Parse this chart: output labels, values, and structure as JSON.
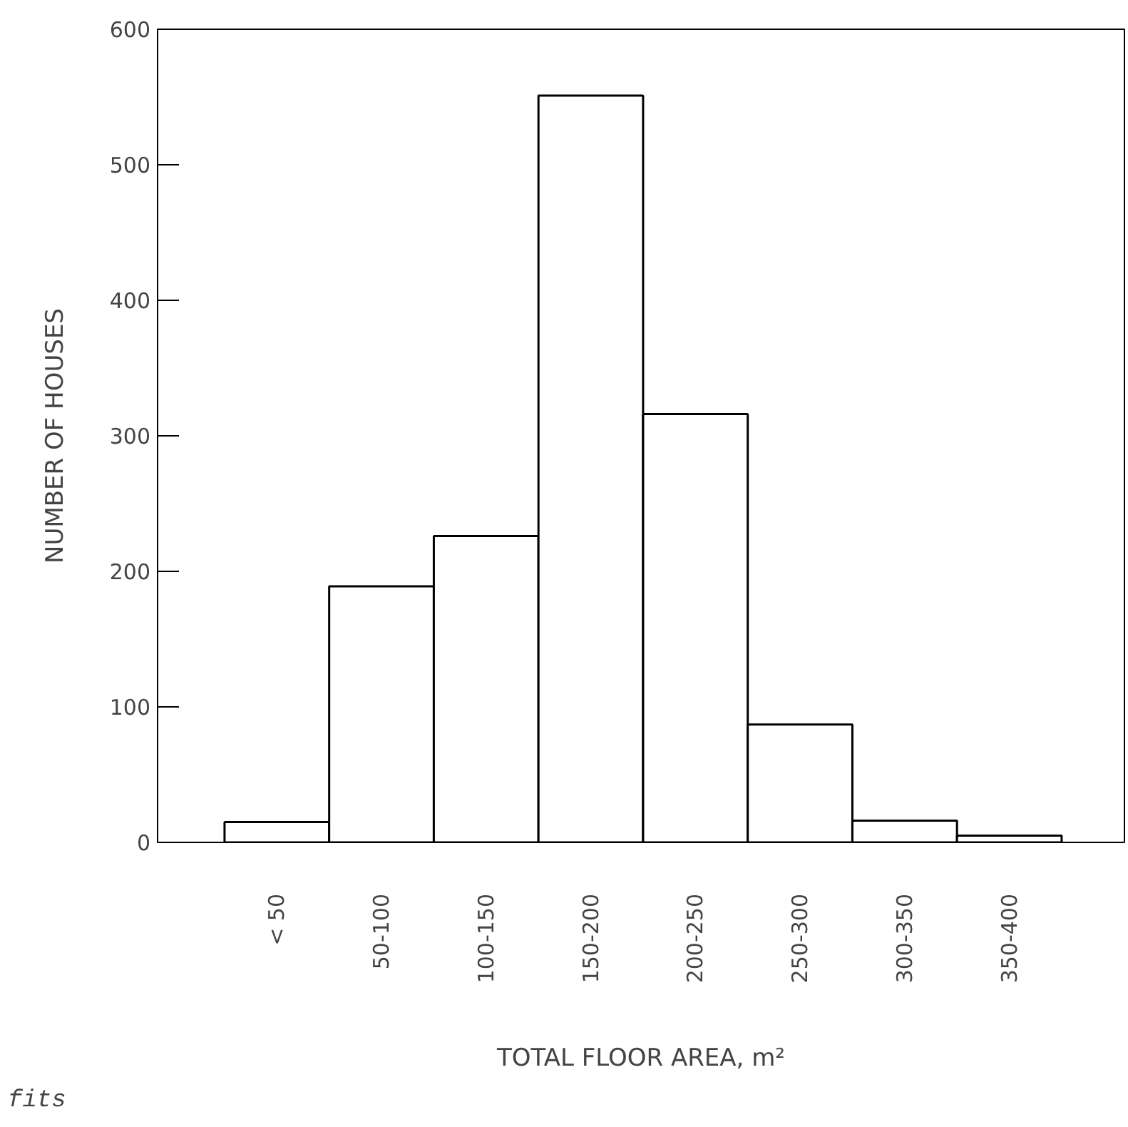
{
  "chart_data": {
    "type": "bar",
    "xlabel": "TOTAL FLOOR AREA, m²",
    "ylabel": "NUMBER OF HOUSES",
    "categories": [
      "< 50",
      "50-100",
      "100-150",
      "150-200",
      "200-250",
      "250-300",
      "300-350",
      "350-400"
    ],
    "values": [
      15,
      189,
      226,
      551,
      316,
      87,
      16,
      5
    ],
    "color": "#ffffff",
    "ylim": [
      0,
      600
    ],
    "yticks": [
      0,
      100,
      200,
      300,
      400,
      500,
      600
    ],
    "grid": false,
    "annotations": [
      "fits"
    ]
  }
}
